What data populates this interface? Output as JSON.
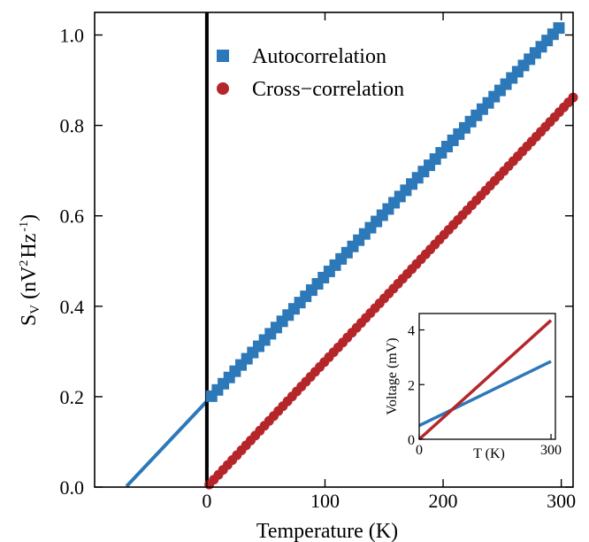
{
  "chart_data": {
    "type": "scatter",
    "xlabel": "Temperature (K)",
    "ylabel_main": "S",
    "ylabel_sub": "V",
    "ylabel_unit": "(nV",
    "ylabel_unit_sup": "2",
    "ylabel_unit_mid": "Hz",
    "ylabel_unit_sup2": "-1",
    "ylabel_unit_end": ")",
    "xlim": [
      -95,
      310
    ],
    "ylim": [
      0,
      1.05
    ],
    "xticks": [
      0,
      100,
      200,
      300
    ],
    "xtick_labels": [
      "0",
      "100",
      "200",
      "300"
    ],
    "yticks": [
      0.0,
      0.2,
      0.4,
      0.6,
      0.8,
      1.0
    ],
    "ytick_labels": [
      "0.0",
      "0.2",
      "0.4",
      "0.6",
      "0.8",
      "1.0"
    ],
    "vline_x": 0,
    "legend_position": "top-left",
    "series": [
      {
        "name": "Autocorrelation",
        "marker": "square",
        "color": "#2d78b8",
        "fit_slope": 0.00277,
        "fit_intercept": 0.19,
        "fit_x_range": [
          -68,
          300
        ],
        "point_x_start": 4,
        "point_x_end": 298,
        "point_count": 60
      },
      {
        "name": "Cross−correlation",
        "marker": "circle",
        "color": "#b5262b",
        "fit_slope": 0.00278,
        "fit_intercept": 0.0,
        "fit_x_range": [
          0,
          310
        ],
        "point_x_start": 2,
        "point_x_end": 310,
        "point_count": 80
      }
    ],
    "inset": {
      "xlabel": "T (K)",
      "ylabel": "Voltage (mV)",
      "xlim": [
        0,
        310
      ],
      "ylim": [
        0,
        4.6
      ],
      "xticks": [
        0,
        300
      ],
      "xtick_labels": [
        "0",
        "300"
      ],
      "yticks": [
        0,
        2,
        4
      ],
      "ytick_labels": [
        "0",
        "2",
        "4"
      ],
      "series": [
        {
          "name": "Autocorrelation",
          "color": "#2d78b8",
          "x_range": [
            0,
            300
          ],
          "y_start": 0.5,
          "y_end": 2.85
        },
        {
          "name": "Cross−correlation",
          "color": "#b5262b",
          "x_range": [
            0,
            300
          ],
          "y_start": 0.0,
          "y_end": 4.35
        }
      ]
    }
  }
}
